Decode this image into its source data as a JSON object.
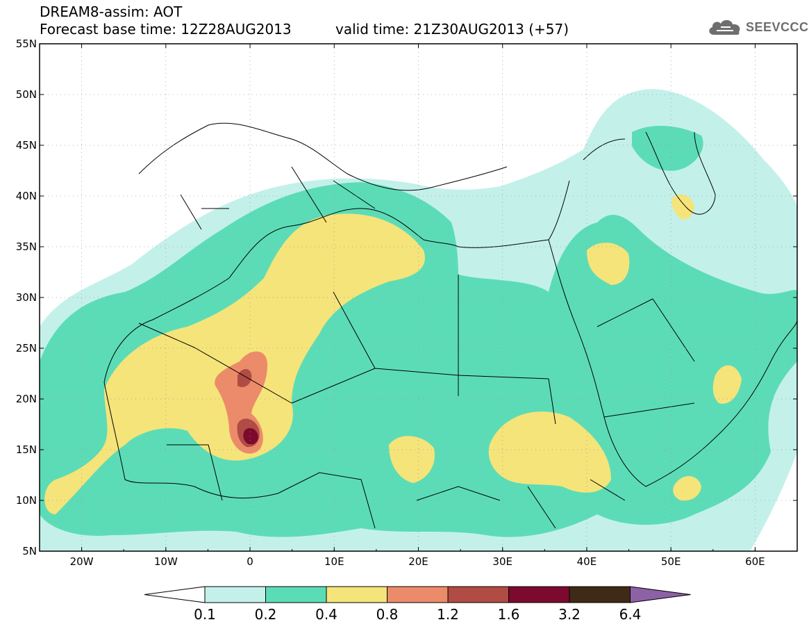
{
  "header": {
    "title_line1": "DREAM8-assim: AOT",
    "title_line2": "Forecast base time: 12Z28AUG2013",
    "valid_time": "valid time: 21Z30AUG2013 (+57)",
    "logo_text": "SEEVCCC",
    "logo_icon": "cloud-icon"
  },
  "map": {
    "lat_labels": [
      "55N",
      "50N",
      "45N",
      "40N",
      "35N",
      "30N",
      "25N",
      "20N",
      "15N",
      "10N",
      "5N"
    ],
    "lon_labels": [
      "20W",
      "10W",
      "0",
      "10E",
      "20E",
      "30E",
      "40E",
      "50E",
      "60E"
    ],
    "lon_range": [
      -25,
      65
    ],
    "lat_range": [
      5,
      55
    ]
  },
  "legend": {
    "levels": [
      "0.1",
      "0.2",
      "0.4",
      "0.8",
      "1.2",
      "1.6",
      "3.2",
      "6.4"
    ],
    "colors": [
      "#c3f1ea",
      "#5cdcb6",
      "#f5e47a",
      "#ec8b6a",
      "#b04c43",
      "#7b0a2e",
      "#3f2a18",
      "#8d61a5"
    ],
    "under_color": "#ffffff"
  }
}
